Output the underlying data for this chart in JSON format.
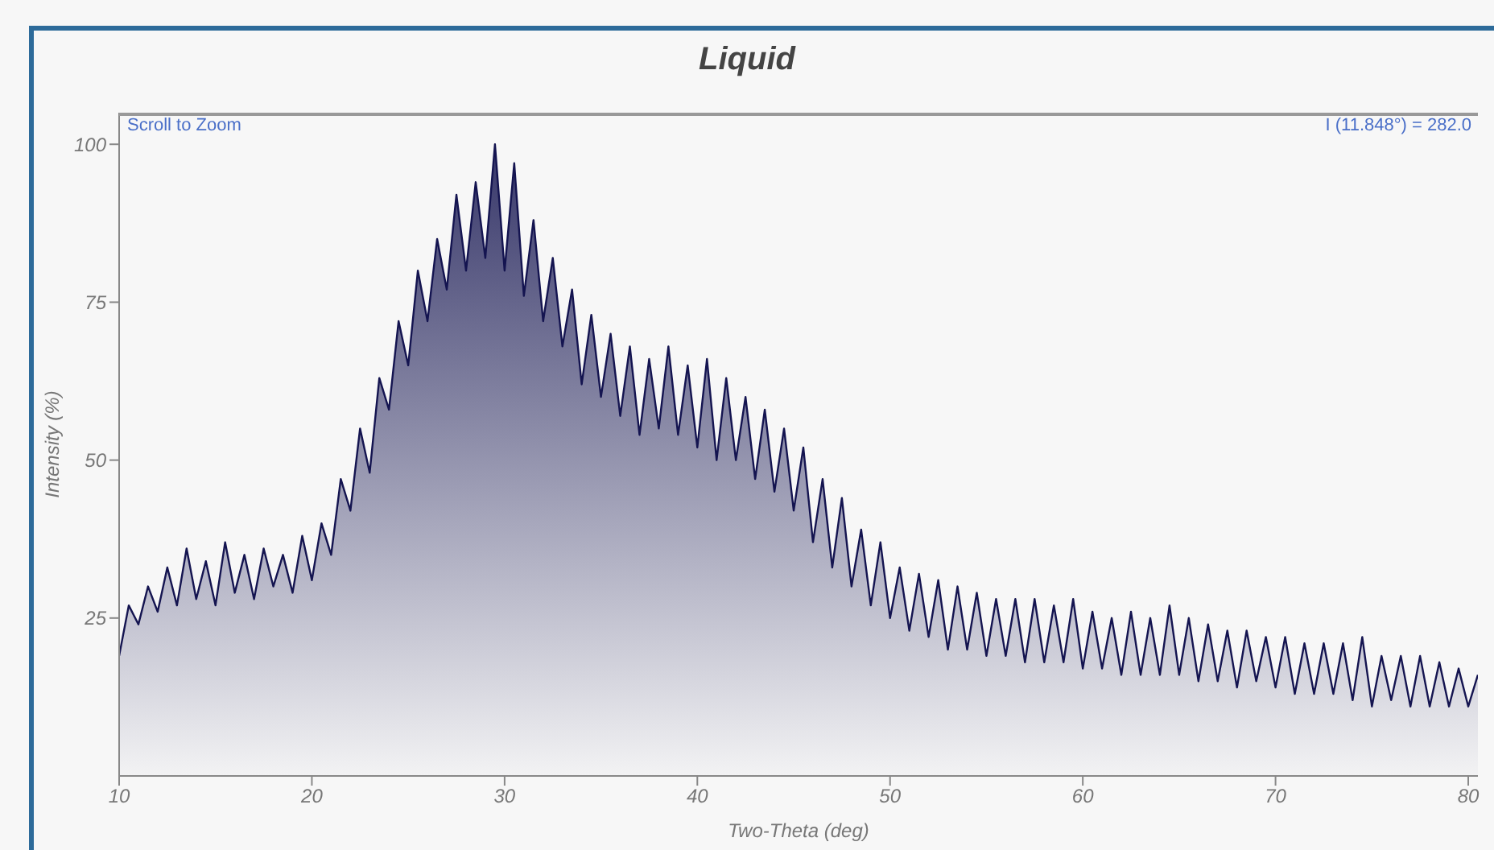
{
  "chart_data": {
    "type": "area",
    "title": "Liquid",
    "xlabel": "Two-Theta (deg)",
    "ylabel": "Intensity (%)",
    "annotations": [
      "Scroll to Zoom",
      "I (11.848°) = 282.0"
    ],
    "xlim": [
      10,
      80.5
    ],
    "xticks": [
      10,
      20,
      30,
      40,
      50,
      60,
      70,
      80
    ],
    "ylim": [
      0,
      105
    ],
    "yticks": [
      25,
      50,
      75,
      100
    ],
    "x": [
      10,
      10.5,
      11,
      11.5,
      12,
      12.5,
      13,
      13.5,
      14,
      14.5,
      15,
      15.5,
      16,
      16.5,
      17,
      17.5,
      18,
      18.5,
      19,
      19.5,
      20,
      20.5,
      21,
      21.5,
      22,
      22.5,
      23,
      23.5,
      24,
      24.5,
      25,
      25.5,
      26,
      26.5,
      27,
      27.5,
      28,
      28.5,
      29,
      29.5,
      30,
      30.5,
      31,
      31.5,
      32,
      32.5,
      33,
      33.5,
      34,
      34.5,
      35,
      35.5,
      36,
      36.5,
      37,
      37.5,
      38,
      38.5,
      39,
      39.5,
      40,
      40.5,
      41,
      41.5,
      42,
      42.5,
      43,
      43.5,
      44,
      44.5,
      45,
      45.5,
      46,
      46.5,
      47,
      47.5,
      48,
      48.5,
      49,
      49.5,
      50,
      50.5,
      51,
      51.5,
      52,
      52.5,
      53,
      53.5,
      54,
      54.5,
      55,
      55.5,
      56,
      56.5,
      57,
      57.5,
      58,
      58.5,
      59,
      59.5,
      60,
      60.5,
      61,
      61.5,
      62,
      62.5,
      63,
      63.5,
      64,
      64.5,
      65,
      65.5,
      66,
      66.5,
      67,
      67.5,
      68,
      68.5,
      69,
      69.5,
      70,
      70.5,
      71,
      71.5,
      72,
      72.5,
      73,
      73.5,
      74,
      74.5,
      75,
      75.5,
      76,
      76.5,
      77,
      77.5,
      78,
      78.5,
      79,
      79.5,
      80,
      80.5
    ],
    "series": [
      {
        "color": "#141450",
        "values": [
          19,
          27,
          24,
          30,
          26,
          33,
          27,
          36,
          28,
          34,
          27,
          37,
          29,
          35,
          28,
          36,
          30,
          35,
          29,
          38,
          31,
          40,
          35,
          47,
          42,
          55,
          48,
          63,
          58,
          72,
          65,
          80,
          72,
          85,
          77,
          92,
          80,
          94,
          82,
          100,
          80,
          97,
          76,
          88,
          72,
          82,
          68,
          77,
          62,
          73,
          60,
          70,
          57,
          68,
          54,
          66,
          55,
          68,
          54,
          65,
          52,
          66,
          50,
          63,
          50,
          60,
          47,
          58,
          45,
          55,
          42,
          52,
          37,
          47,
          33,
          44,
          30,
          39,
          27,
          37,
          25,
          33,
          23,
          32,
          22,
          31,
          20,
          30,
          20,
          29,
          19,
          28,
          19,
          28,
          18,
          28,
          18,
          27,
          18,
          28,
          17,
          26,
          17,
          25,
          16,
          26,
          16,
          25,
          16,
          27,
          16,
          25,
          15,
          24,
          15,
          23,
          14,
          23,
          15,
          22,
          14,
          22,
          13,
          21,
          13,
          21,
          13,
          21,
          12,
          22,
          11,
          19,
          12,
          19,
          11,
          19,
          11,
          18,
          11,
          17,
          11,
          16
        ]
      }
    ]
  }
}
